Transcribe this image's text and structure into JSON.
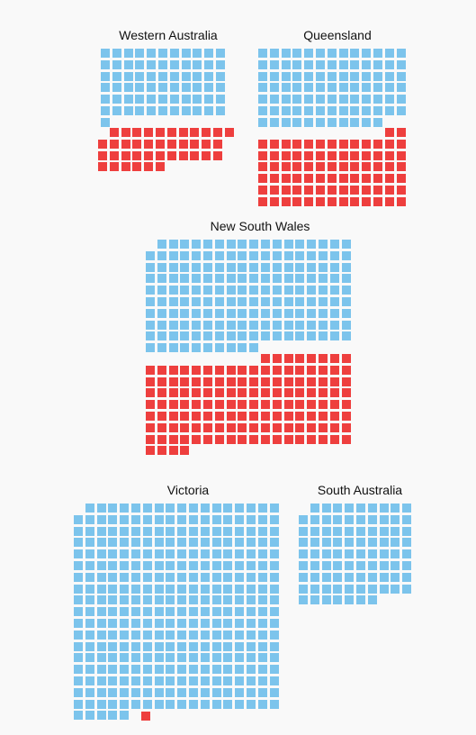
{
  "colors": {
    "blue": "#7cc4ec",
    "red": "#ee3f3e"
  },
  "chart_data": [
    {
      "type": "waffle",
      "title": "Western Australia",
      "blue_rows": [
        11,
        11,
        11,
        11,
        11,
        11,
        1
      ],
      "red_rows": [
        11,
        11,
        11,
        6
      ],
      "blue_top_shift": 1,
      "red_top_shift": 1
    },
    {
      "type": "waffle",
      "title": "Queensland",
      "blue_rows": [
        13,
        13,
        13,
        13,
        13,
        13,
        11
      ],
      "red_rows": [
        2,
        13,
        13,
        13,
        13,
        13,
        13
      ],
      "blue_top_shift": 1,
      "red_top_shift": 0
    },
    {
      "type": "waffle",
      "title": "New South Wales",
      "blue_rows": [
        17,
        18,
        18,
        18,
        18,
        18,
        18,
        18,
        18,
        10
      ],
      "red_rows": [
        8,
        18,
        18,
        18,
        18,
        18,
        18,
        18,
        4
      ],
      "blue_top_shift": 1,
      "red_top_shift": 0
    },
    {
      "type": "waffle",
      "title": "Victoria",
      "blue_rows": [
        17,
        18,
        18,
        18,
        18,
        18,
        18,
        18,
        18,
        18,
        18,
        18,
        18,
        18,
        18,
        18,
        18,
        18,
        5
      ],
      "red_rows": [
        1
      ],
      "blue_top_shift": 1,
      "red_top_shift": 0
    },
    {
      "type": "waffle",
      "title": "South Australia",
      "blue_rows": [
        9,
        10,
        10,
        10,
        10,
        10,
        10,
        10,
        7
      ],
      "red_rows": [],
      "blue_top_shift": 1,
      "red_top_shift": 0
    }
  ]
}
